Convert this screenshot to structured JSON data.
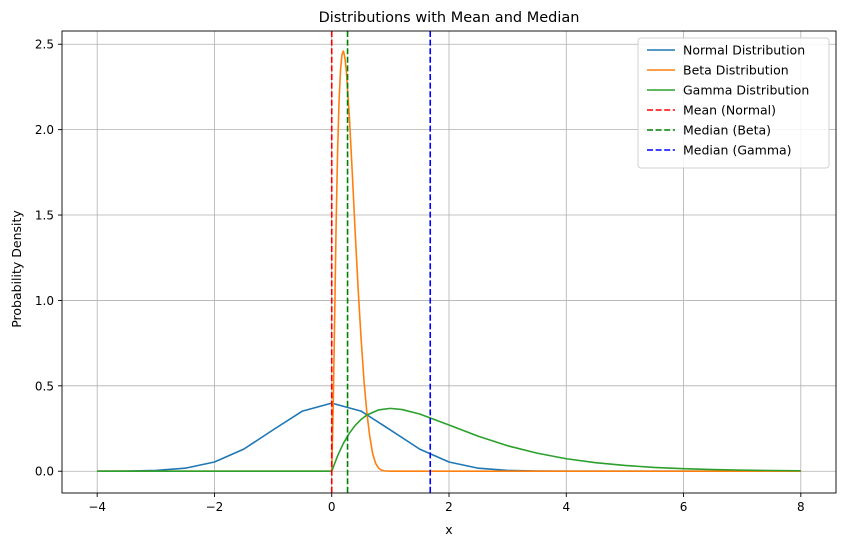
{
  "chart_data": {
    "type": "line",
    "title": "Distributions with Mean and Median",
    "xlabel": "x",
    "ylabel": "Probability Density",
    "xlim": [
      -4.6,
      8.6
    ],
    "ylim": [
      -0.1275,
      2.5775
    ],
    "xticks": [
      -4,
      -2,
      0,
      2,
      4,
      6,
      8
    ],
    "xtick_labels": [
      "−4",
      "−2",
      "0",
      "2",
      "4",
      "6",
      "8"
    ],
    "yticks": [
      0.0,
      0.5,
      1.0,
      1.5,
      2.0,
      2.5
    ],
    "ytick_labels": [
      "0.0",
      "0.5",
      "1.0",
      "1.5",
      "2.0",
      "2.5"
    ],
    "grid": true,
    "legend_position": "top-right",
    "series": [
      {
        "name": "Normal Distribution",
        "color": "#1f77b4",
        "style": "solid",
        "x": [
          -4.0,
          -3.5,
          -3.0,
          -2.5,
          -2.0,
          -1.5,
          -1.0,
          -0.5,
          0.0,
          0.5,
          1.0,
          1.5,
          2.0,
          2.5,
          3.0,
          3.5,
          4.0,
          5.0,
          6.0,
          7.0,
          8.0
        ],
        "y": [
          0.0001,
          0.0009,
          0.0044,
          0.0175,
          0.054,
          0.1295,
          0.242,
          0.3521,
          0.3989,
          0.3521,
          0.242,
          0.1295,
          0.054,
          0.0175,
          0.0044,
          0.0009,
          0.0001,
          0.0,
          0.0,
          0.0,
          0.0
        ]
      },
      {
        "name": "Beta Distribution",
        "color": "#ff7f0e",
        "style": "solid",
        "x": [
          -4.0,
          0.0,
          0.025,
          0.05,
          0.075,
          0.1,
          0.125,
          0.15,
          0.175,
          0.2,
          0.225,
          0.25,
          0.3,
          0.35,
          0.4,
          0.45,
          0.5,
          0.55,
          0.6,
          0.65,
          0.7,
          0.75,
          0.8,
          0.85,
          0.9,
          1.0,
          8.0
        ],
        "y": [
          0.0,
          0.0,
          0.38,
          0.9,
          1.45,
          1.87,
          2.17,
          2.35,
          2.44,
          2.46,
          2.42,
          2.34,
          2.08,
          1.75,
          1.4,
          1.07,
          0.78,
          0.53,
          0.34,
          0.2,
          0.1,
          0.045,
          0.018,
          0.006,
          0.002,
          0.0,
          0.0
        ]
      },
      {
        "name": "Gamma Distribution",
        "color": "#2ca02c",
        "style": "solid",
        "x": [
          -4.0,
          0.0,
          0.1,
          0.2,
          0.3,
          0.4,
          0.5,
          0.6,
          0.8,
          1.0,
          1.2,
          1.5,
          2.0,
          2.5,
          3.0,
          3.5,
          4.0,
          4.5,
          5.0,
          5.5,
          6.0,
          6.5,
          7.0,
          7.5,
          8.0
        ],
        "y": [
          0.0,
          0.0,
          0.09,
          0.164,
          0.222,
          0.268,
          0.303,
          0.329,
          0.359,
          0.368,
          0.361,
          0.335,
          0.271,
          0.205,
          0.149,
          0.106,
          0.073,
          0.05,
          0.034,
          0.022,
          0.015,
          0.01,
          0.0064,
          0.0042,
          0.0027
        ]
      },
      {
        "name": "Mean (Normal)",
        "color": "#ff0000",
        "style": "dashed",
        "vline": 0.0
      },
      {
        "name": "Median (Beta)",
        "color": "#008000",
        "style": "dashed",
        "vline": 0.27
      },
      {
        "name": "Median (Gamma)",
        "color": "#0000ff",
        "style": "dashed",
        "vline": 1.68
      }
    ]
  }
}
